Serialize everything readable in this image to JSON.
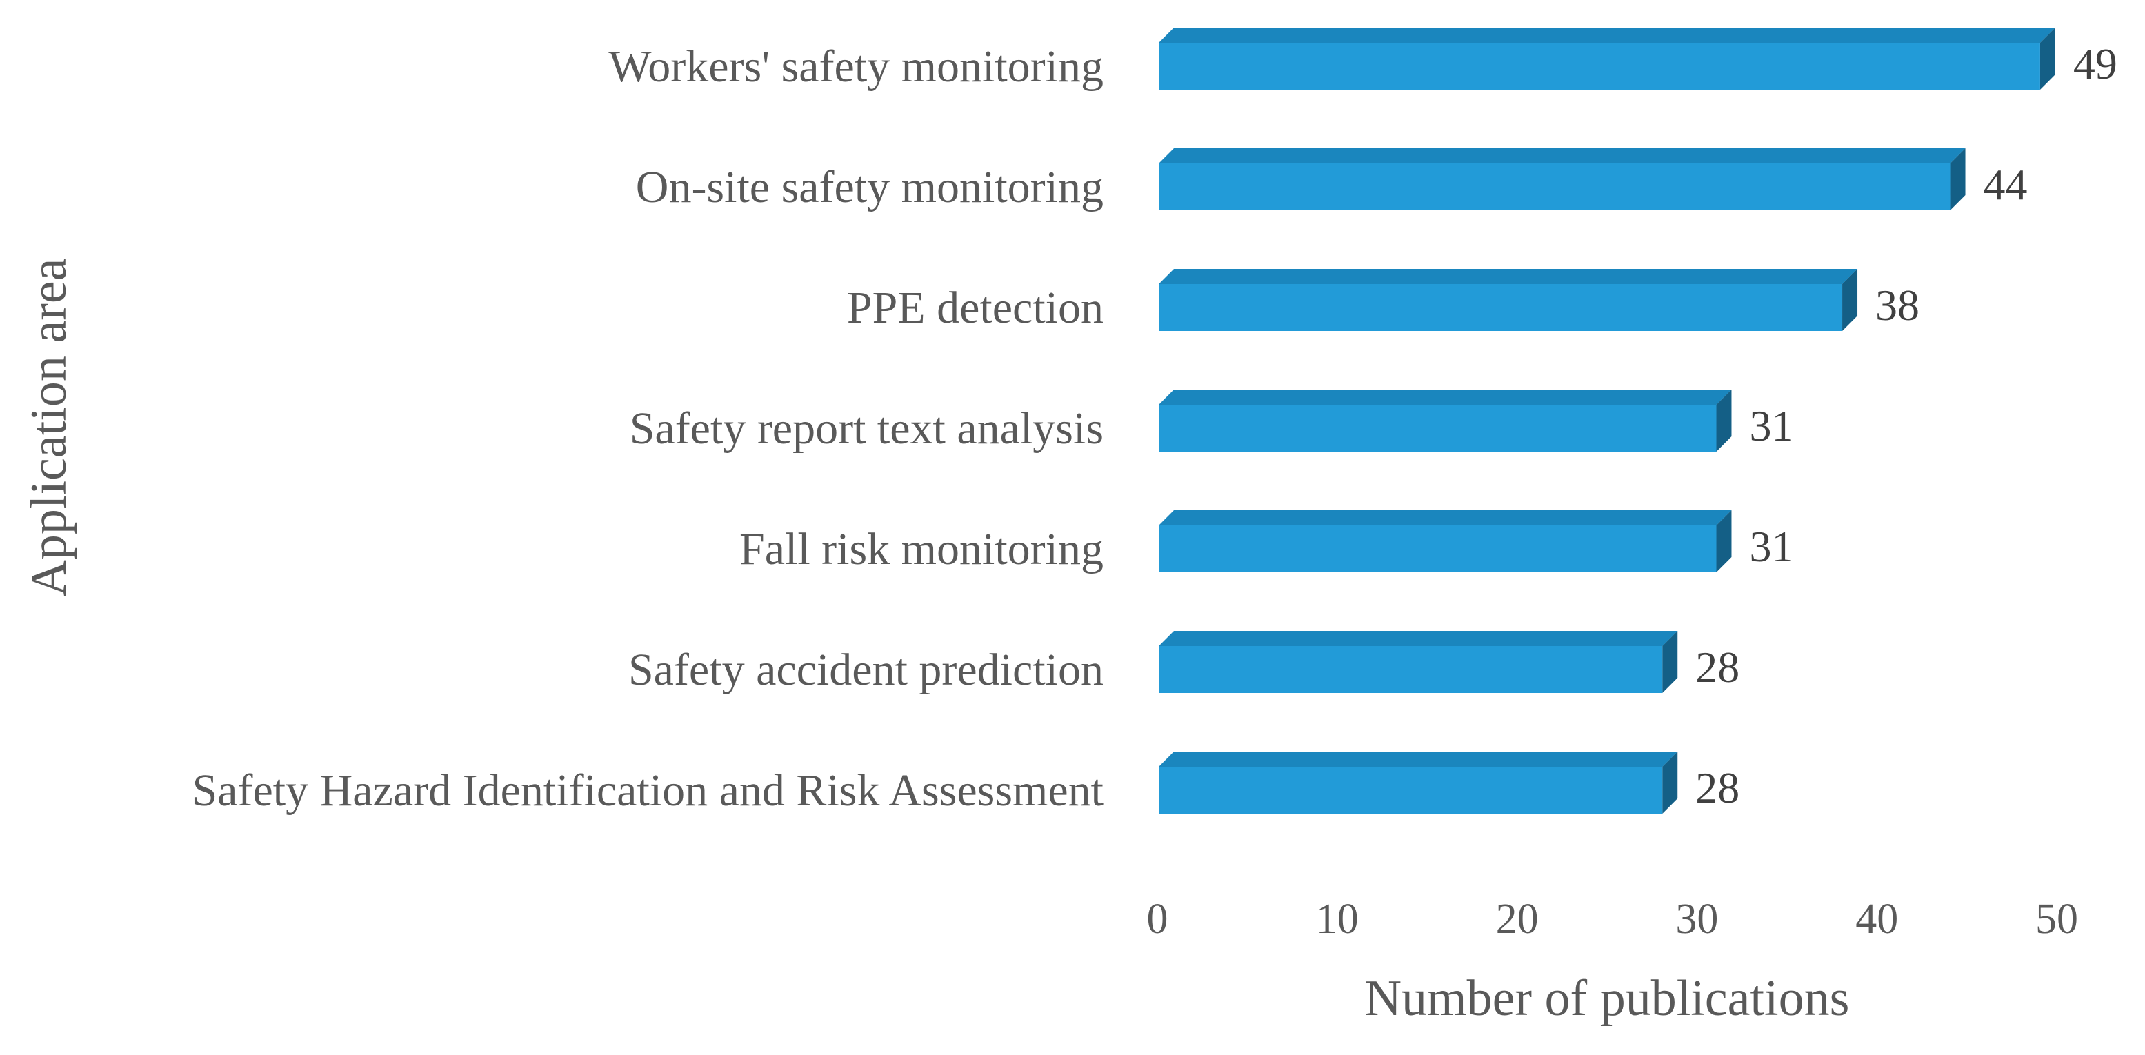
{
  "chart_data": {
    "type": "bar",
    "orientation": "horizontal",
    "style": "3d",
    "categories": [
      "Workers' safety monitoring",
      "On-site safety monitoring",
      "PPE detection",
      "Safety report text analysis",
      "Fall risk monitoring",
      "Safety accident prediction",
      "Safety Hazard Identification and Risk Assessment"
    ],
    "values": [
      49,
      44,
      38,
      31,
      31,
      28,
      28
    ],
    "value_labels": [
      "49",
      "44",
      "38",
      "31",
      "31",
      "28",
      "28"
    ],
    "xlabel": "Number of publications",
    "ylabel": "Application area",
    "xlim": [
      0,
      50
    ],
    "x_ticks": [
      "0",
      "10",
      "20",
      "30",
      "40",
      "50"
    ],
    "grid": false,
    "legend": "none",
    "colors": {
      "bar_front": "#229BD8",
      "bar_top": "#1A86BE",
      "bar_side": "#145F86",
      "text": "#595959"
    }
  }
}
